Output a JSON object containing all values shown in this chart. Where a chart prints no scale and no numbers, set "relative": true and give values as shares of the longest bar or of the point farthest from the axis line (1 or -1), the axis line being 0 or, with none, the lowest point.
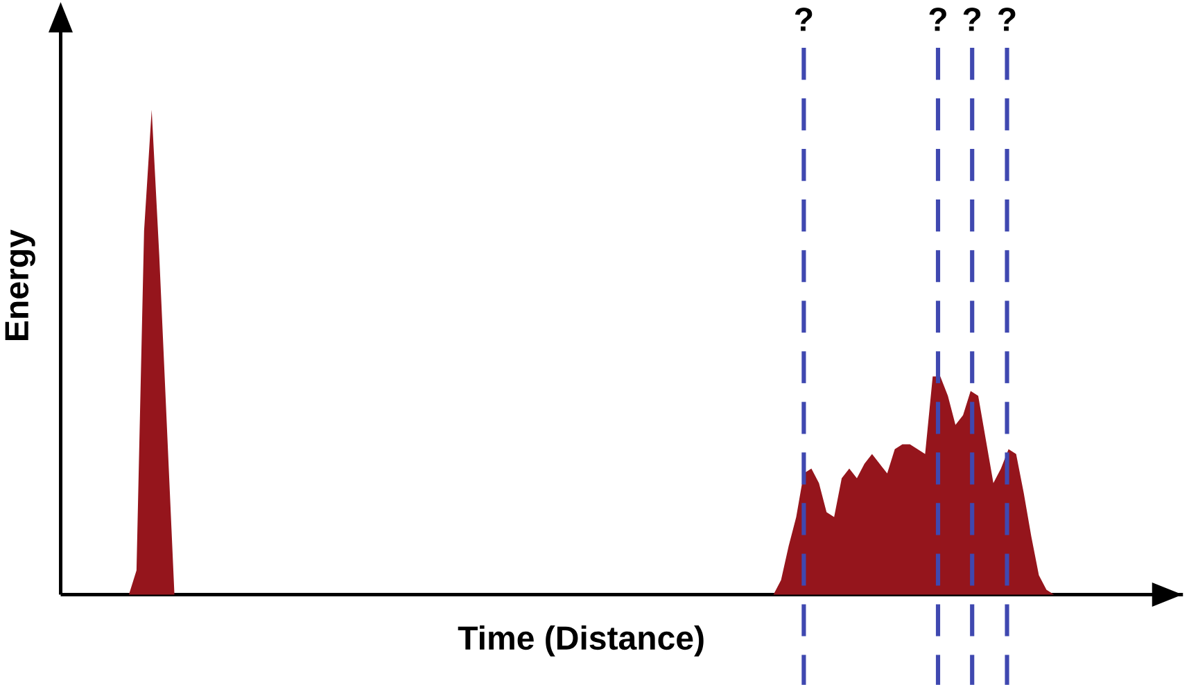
{
  "chart_data": {
    "type": "area",
    "relative": true,
    "xlabel": "Time (Distance)",
    "ylabel": "Energy",
    "categories": [
      null,
      null,
      null,
      null,
      null,
      null,
      null,
      null,
      null,
      null,
      null,
      null,
      null,
      null,
      null,
      null,
      null,
      null,
      null,
      null,
      null,
      null,
      null,
      null,
      null,
      null,
      null,
      null,
      null,
      null,
      null,
      null,
      null,
      null,
      null,
      null,
      null,
      null,
      null,
      null,
      null,
      null,
      null,
      null,
      null,
      null,
      null,
      null,
      null,
      null,
      null,
      null,
      null,
      null,
      null,
      null,
      null,
      null,
      null,
      null,
      null,
      null,
      null,
      null,
      null,
      null,
      null,
      null,
      null,
      null,
      null,
      null,
      null,
      null,
      null,
      null,
      null,
      null,
      null,
      null,
      null,
      null,
      null,
      null,
      null,
      null,
      null,
      null,
      null,
      null,
      null,
      null,
      null,
      null,
      null,
      null,
      null,
      null,
      null,
      null,
      null,
      null,
      null,
      null,
      null,
      null,
      null,
      null,
      null,
      null,
      null,
      null,
      null,
      null,
      null,
      null,
      null,
      null,
      null,
      null,
      null,
      null,
      null,
      null,
      null,
      null,
      null,
      null,
      null,
      null,
      null,
      null
    ],
    "series": [
      {
        "color": "#95151c",
        "values": [
          0,
          0,
          0,
          0,
          0,
          0,
          0,
          0,
          0,
          0,
          0.05,
          0.75,
          1,
          0.7,
          0.35,
          0,
          0,
          0,
          0,
          0,
          0,
          0,
          0,
          0,
          0,
          0,
          0,
          0,
          0,
          0,
          0,
          0,
          0,
          0,
          0,
          0,
          0,
          0,
          0,
          0,
          0,
          0,
          0,
          0,
          0,
          0,
          0,
          0,
          0,
          0,
          0,
          0,
          0,
          0,
          0,
          0,
          0,
          0,
          0,
          0,
          0,
          0,
          0,
          0,
          0,
          0,
          0,
          0,
          0,
          0,
          0,
          0,
          0,
          0,
          0,
          0,
          0,
          0,
          0,
          0,
          0,
          0,
          0,
          0,
          0,
          0,
          0,
          0,
          0,
          0,
          0,
          0,
          0,
          0,
          0,
          0.03,
          0.1,
          0.16,
          0.25,
          0.26,
          0.23,
          0.17,
          0.16,
          0.24,
          0.26,
          0.24,
          0.27,
          0.29,
          0.27,
          0.25,
          0.3,
          0.31,
          0.31,
          0.3,
          0.29,
          0.45,
          0.45,
          0.41,
          0.35,
          0.37,
          0.42,
          0.41,
          0.32,
          0.23,
          0.26,
          0.3,
          0.29,
          0.21,
          0.12,
          0.04,
          0.01,
          0
        ]
      }
    ],
    "annotations": [
      "?",
      "?",
      "?",
      "?"
    ]
  }
}
